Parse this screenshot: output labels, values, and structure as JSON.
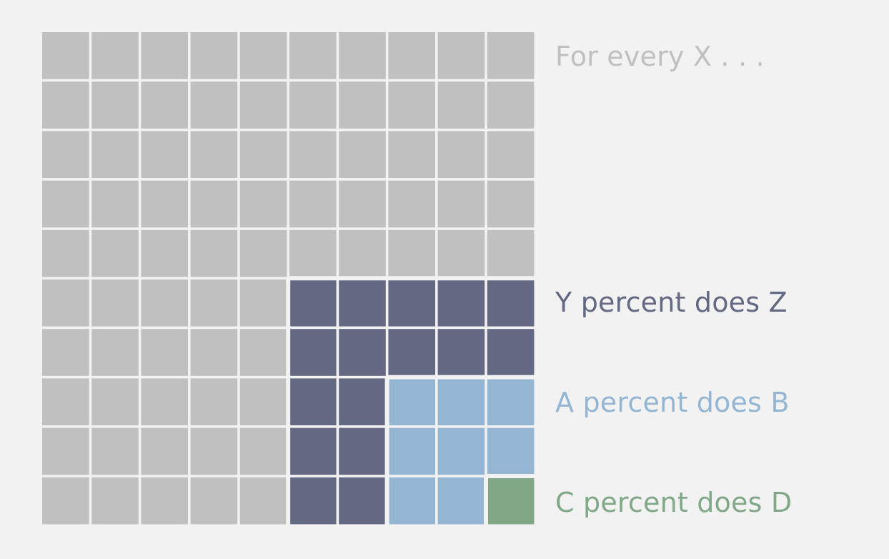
{
  "chart_data": {
    "type": "waffle",
    "grid": {
      "rows": 10,
      "cols": 10
    },
    "base_label": "For every X . . .",
    "base_color": "#c0c0c0",
    "background": "#f2f2f2",
    "groups": [
      {
        "label": "Y percent does Z",
        "value": 25,
        "color": "#636983"
      },
      {
        "label": "A percent does B",
        "value": 9,
        "color": "#95b6d2"
      },
      {
        "label": "C percent does D",
        "value": 1,
        "color": "#80a887"
      }
    ],
    "cell_assignment": [
      [
        0,
        0,
        0,
        0,
        0,
        0,
        0,
        0,
        0,
        0
      ],
      [
        0,
        0,
        0,
        0,
        0,
        0,
        0,
        0,
        0,
        0
      ],
      [
        0,
        0,
        0,
        0,
        0,
        0,
        0,
        0,
        0,
        0
      ],
      [
        0,
        0,
        0,
        0,
        0,
        0,
        0,
        0,
        0,
        0
      ],
      [
        0,
        0,
        0,
        0,
        0,
        0,
        0,
        0,
        0,
        0
      ],
      [
        0,
        0,
        0,
        0,
        0,
        1,
        1,
        1,
        1,
        1
      ],
      [
        0,
        0,
        0,
        0,
        0,
        1,
        1,
        1,
        1,
        1
      ],
      [
        0,
        0,
        0,
        0,
        0,
        1,
        1,
        2,
        2,
        2
      ],
      [
        0,
        0,
        0,
        0,
        0,
        1,
        1,
        2,
        2,
        2
      ],
      [
        0,
        0,
        0,
        0,
        0,
        1,
        1,
        2,
        2,
        3
      ]
    ]
  }
}
